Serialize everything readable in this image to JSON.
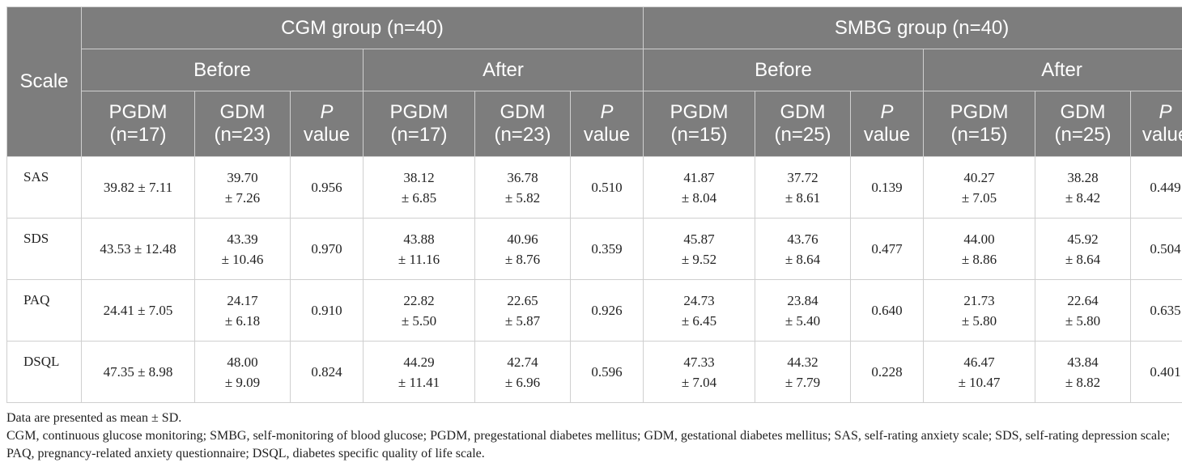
{
  "header": {
    "scale": "Scale",
    "groups": [
      {
        "label": "CGM group (n=40)",
        "periods": [
          {
            "label": "Before",
            "cols": [
              {
                "name": "PGDM",
                "n": "(n=17)",
                "italic": false
              },
              {
                "name": "GDM",
                "n": "(n=23)",
                "italic": false
              },
              {
                "name": "P",
                "n": "value",
                "italic": true
              }
            ]
          },
          {
            "label": "After",
            "cols": [
              {
                "name": "PGDM",
                "n": "(n=17)",
                "italic": false
              },
              {
                "name": "GDM",
                "n": "(n=23)",
                "italic": false
              },
              {
                "name": "P",
                "n": "value",
                "italic": true
              }
            ]
          }
        ]
      },
      {
        "label": "SMBG group (n=40)",
        "periods": [
          {
            "label": "Before",
            "cols": [
              {
                "name": "PGDM",
                "n": "(n=15)",
                "italic": false
              },
              {
                "name": "GDM",
                "n": "(n=25)",
                "italic": false
              },
              {
                "name": "P",
                "n": "value",
                "italic": true
              }
            ]
          },
          {
            "label": "After",
            "cols": [
              {
                "name": "PGDM",
                "n": "(n=15)",
                "italic": false
              },
              {
                "name": "GDM",
                "n": "(n=25)",
                "italic": false
              },
              {
                "name": "P",
                "n": "value",
                "italic": true
              }
            ]
          }
        ]
      }
    ]
  },
  "rows": [
    {
      "scale": "SAS",
      "cells": [
        [
          "39.82 ± 7.11"
        ],
        [
          "39.70",
          "± 7.26"
        ],
        [
          "0.956"
        ],
        [
          "38.12",
          "± 6.85"
        ],
        [
          "36.78",
          "± 5.82"
        ],
        [
          "0.510"
        ],
        [
          "41.87",
          "± 8.04"
        ],
        [
          "37.72",
          "± 8.61"
        ],
        [
          "0.139"
        ],
        [
          "40.27",
          "± 7.05"
        ],
        [
          "38.28",
          "± 8.42"
        ],
        [
          "0.449"
        ]
      ]
    },
    {
      "scale": "SDS",
      "cells": [
        [
          "43.53 ± 12.48"
        ],
        [
          "43.39",
          "± 10.46"
        ],
        [
          "0.970"
        ],
        [
          "43.88",
          "± 11.16"
        ],
        [
          "40.96",
          "± 8.76"
        ],
        [
          "0.359"
        ],
        [
          "45.87",
          "± 9.52"
        ],
        [
          "43.76",
          "± 8.64"
        ],
        [
          "0.477"
        ],
        [
          "44.00",
          "± 8.86"
        ],
        [
          "45.92",
          "± 8.64"
        ],
        [
          "0.504"
        ]
      ]
    },
    {
      "scale": "PAQ",
      "cells": [
        [
          "24.41 ± 7.05"
        ],
        [
          "24.17",
          "± 6.18"
        ],
        [
          "0.910"
        ],
        [
          "22.82",
          "± 5.50"
        ],
        [
          "22.65",
          "± 5.87"
        ],
        [
          "0.926"
        ],
        [
          "24.73",
          "± 6.45"
        ],
        [
          "23.84",
          "± 5.40"
        ],
        [
          "0.640"
        ],
        [
          "21.73",
          "± 5.80"
        ],
        [
          "22.64",
          "± 5.80"
        ],
        [
          "0.635"
        ]
      ]
    },
    {
      "scale": "DSQL",
      "cells": [
        [
          "47.35 ± 8.98"
        ],
        [
          "48.00",
          "± 9.09"
        ],
        [
          "0.824"
        ],
        [
          "44.29",
          "± 11.41"
        ],
        [
          "42.74",
          "± 6.96"
        ],
        [
          "0.596"
        ],
        [
          "47.33",
          "± 7.04"
        ],
        [
          "44.32",
          "± 7.79"
        ],
        [
          "0.228"
        ],
        [
          "46.47",
          "± 10.47"
        ],
        [
          "43.84",
          "± 8.82"
        ],
        [
          "0.401"
        ]
      ]
    }
  ],
  "notes": {
    "line1": "Data are presented as mean ± SD.",
    "line2": "CGM, continuous glucose monitoring; SMBG, self-monitoring of blood glucose; PGDM, pregestational diabetes mellitus; GDM, gestational diabetes mellitus; SAS, self-rating anxiety scale; SDS, self-rating depression scale; PAQ, pregnancy-related anxiety questionnaire; DSQL, diabetes specific quality of life scale."
  }
}
